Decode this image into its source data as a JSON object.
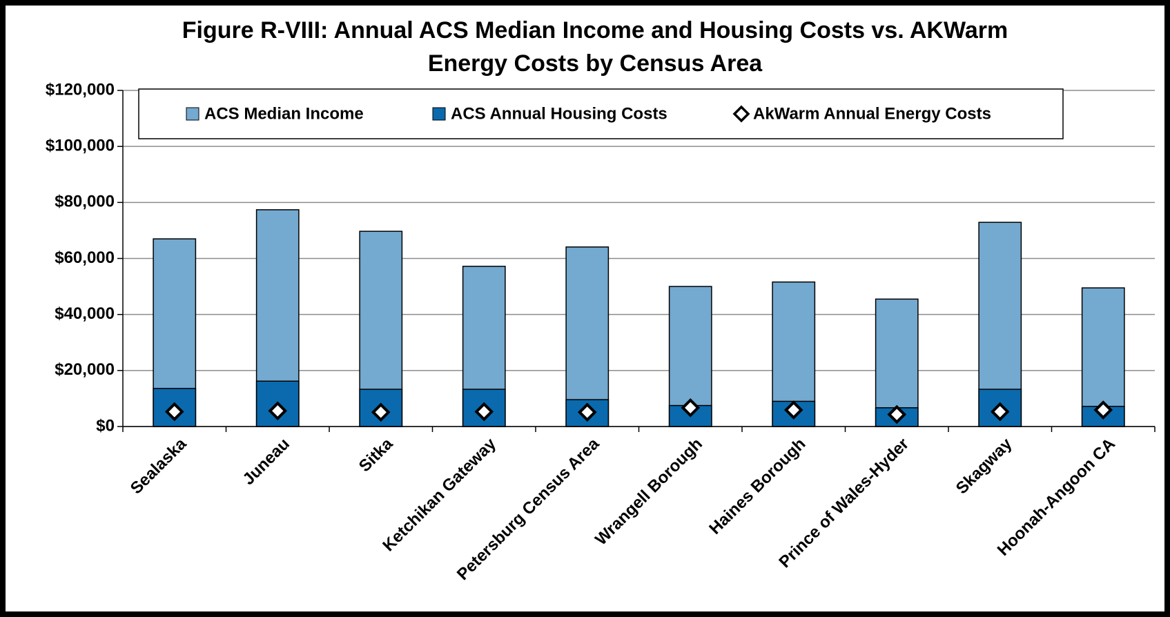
{
  "chart_data": {
    "type": "bar",
    "title": "Figure R-VIII: Annual ACS Median Income and Housing Costs vs. AKWarm",
    "subtitle": "Energy Costs by Census Area",
    "categories": [
      "Sealaska",
      "Juneau",
      "Sitka",
      "Ketchikan Gateway",
      "Petersburg Census Area",
      "Wrangell Borough",
      "Haines Borough",
      "Prince of Wales-Hyder",
      "Skagway",
      "Hoonah-Angoon CA"
    ],
    "series": [
      {
        "name": "ACS Median Income",
        "type": "bar",
        "color": "#74a9d0",
        "values": [
          67000,
          77400,
          69700,
          57200,
          64100,
          50000,
          51600,
          45500,
          72900,
          49500
        ]
      },
      {
        "name": "ACS Annual Housing Costs",
        "type": "bar",
        "color": "#0a6aad",
        "values": [
          13600,
          16200,
          13300,
          13300,
          9600,
          7500,
          9000,
          6700,
          13300,
          7200
        ]
      },
      {
        "name": "AkWarm Annual Energy Costs",
        "type": "scatter",
        "marker": "diamond",
        "color": "#ffffff",
        "values": [
          5300,
          5600,
          5100,
          5300,
          5100,
          6700,
          5900,
          4300,
          5300,
          5900
        ]
      }
    ],
    "overlap": true,
    "ylim": [
      0,
      120000
    ],
    "yticks": [
      {
        "value": 0,
        "label": "$0"
      },
      {
        "value": 20000,
        "label": "$20,000"
      },
      {
        "value": 40000,
        "label": "$40,000"
      },
      {
        "value": 60000,
        "label": "$60,000"
      },
      {
        "value": 80000,
        "label": "$80,000"
      },
      {
        "value": 100000,
        "label": "$100,000"
      },
      {
        "value": 120000,
        "label": "$120,000"
      }
    ],
    "grid": true,
    "legend": "top"
  }
}
